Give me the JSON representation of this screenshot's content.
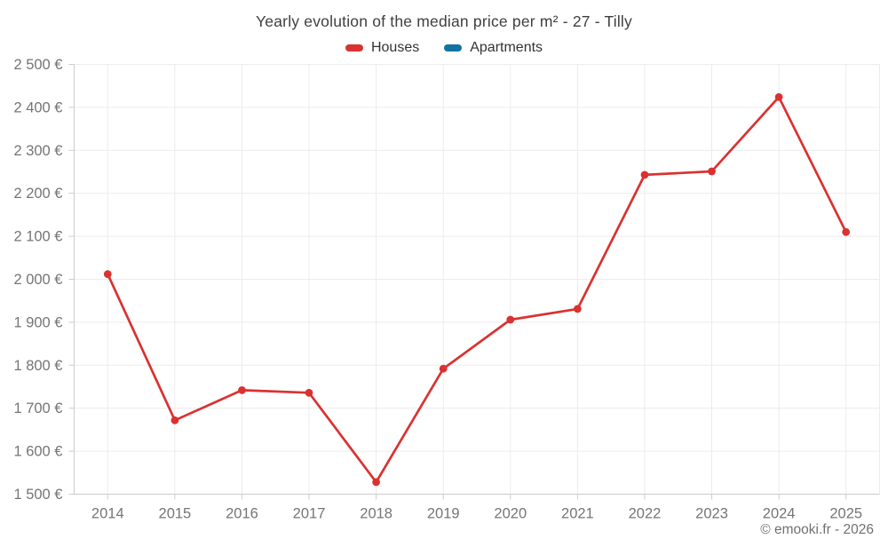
{
  "chart": {
    "title": "Yearly evolution of the median price per m² - 27 - Tilly"
  },
  "chart_data": {
    "type": "line",
    "title": "Yearly evolution of the median price per m² - 27 - Tilly",
    "categories": [
      "2014",
      "2015",
      "2016",
      "2017",
      "2018",
      "2019",
      "2020",
      "2021",
      "2022",
      "2023",
      "2024",
      "2025"
    ],
    "series": [
      {
        "name": "Houses",
        "color": "#d93231",
        "values": [
          2012,
          1672,
          1742,
          1736,
          1528,
          1792,
          1906,
          1931,
          2243,
          2251,
          2424,
          2110
        ]
      },
      {
        "name": "Apartments",
        "color": "#1272a2",
        "values": []
      }
    ],
    "xlabel": "",
    "ylabel": "",
    "ylim": [
      1500,
      2500
    ],
    "y_tick_step": 100,
    "y_tick_labels": [
      "1 500 €",
      "1 600 €",
      "1 700 €",
      "1 800 €",
      "1 900 €",
      "2 000 €",
      "2 100 €",
      "2 200 €",
      "2 300 €",
      "2 400 €",
      "2 500 €"
    ],
    "grid": true,
    "legend_position": "top",
    "colors": {
      "grid": "#ececec",
      "axis": "#cccccc",
      "tick_text": "#757575",
      "title_text": "#3f3f3f"
    }
  },
  "footer": {
    "copyright": "© emooki.fr - 2026"
  }
}
